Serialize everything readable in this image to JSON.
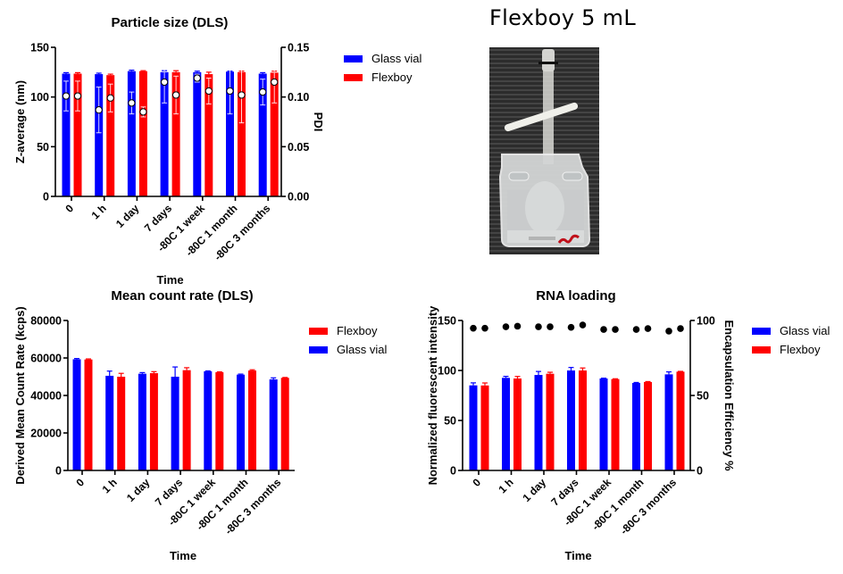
{
  "colors": {
    "glass_vial": "#0000ff",
    "flexboy": "#ff0000",
    "axis": "#000000",
    "pdi_marker_fill": "#ffffff",
    "ee_marker_fill": "#000000"
  },
  "photo": {
    "title": "Flexboy 5 mL",
    "description": "Photograph of a Flexboy 5 mL bag"
  },
  "legends": {
    "particle_size": [
      "Glass vial",
      "Flexboy"
    ],
    "count_rate": [
      "Flexboy",
      "Glass vial"
    ],
    "rna_loading": [
      "Glass vial",
      "Flexboy"
    ]
  },
  "chart_data": [
    {
      "id": "particle_size",
      "type": "bar",
      "title": "Particle size (DLS)",
      "xlabel": "Time",
      "ylabel": "Z-average (nm)",
      "y2label": "PDI",
      "categories": [
        "0",
        "1 h",
        "1 day",
        "7 days",
        "-80C 1 week",
        "-80C 1 month",
        "-80C 3 months"
      ],
      "ylim": [
        0,
        150
      ],
      "yticks": [
        "0",
        "50",
        "100",
        "150"
      ],
      "y2lim": [
        0,
        0.15
      ],
      "y2ticks": [
        "0.00",
        "0.05",
        "0.10",
        "0.15"
      ],
      "legend_position": "right",
      "grid": false,
      "series": [
        {
          "name": "Glass vial",
          "color_key": "glass_vial",
          "axis": "left",
          "values": [
            123.5,
            123,
            126,
            125,
            125,
            125.5,
            123.5
          ],
          "errors": [
            1,
            1,
            1,
            1.5,
            1,
            0.5,
            1
          ]
        },
        {
          "name": "Flexboy",
          "color_key": "flexboy",
          "axis": "left",
          "values": [
            123.5,
            122,
            126,
            125,
            123,
            125,
            124.5
          ],
          "errors": [
            1,
            1,
            0.5,
            1.5,
            2,
            1,
            1.5
          ]
        }
      ],
      "overlay_series": [
        {
          "name": "Glass vial PDI",
          "marker": "white-circle",
          "axis": "right",
          "values": [
            0.101,
            0.087,
            0.094,
            0.115,
            0.119,
            0.106,
            0.105
          ],
          "errors": [
            0.015,
            0.023,
            0.011,
            0.021,
            0.004,
            0.023,
            0.013
          ]
        },
        {
          "name": "Flexboy PDI",
          "marker": "white-circle",
          "axis": "right",
          "values": [
            0.101,
            0.099,
            0.085,
            0.102,
            0.106,
            0.102,
            0.115
          ],
          "errors": [
            0.015,
            0.014,
            0.005,
            0.019,
            0.013,
            0.028,
            0.021
          ]
        }
      ]
    },
    {
      "id": "count_rate",
      "type": "bar",
      "title": "Mean count rate (DLS)",
      "xlabel": "Time",
      "ylabel": "Derived Mean Count Rate (kcps)",
      "categories": [
        "0",
        "1 h",
        "1 day",
        "7 days",
        "-80C 1 week",
        "-80C 1 month",
        "-80C 3 months"
      ],
      "ylim": [
        0,
        80000
      ],
      "yticks": [
        "0",
        "20000",
        "40000",
        "60000",
        "80000"
      ],
      "legend_position": "right",
      "grid": false,
      "series": [
        {
          "name": "Glass vial",
          "color_key": "glass_vial",
          "values": [
            59300,
            50500,
            51600,
            50000,
            52900,
            51100,
            48600
          ],
          "errors": [
            400,
            2500,
            600,
            5200,
            200,
            300,
            800
          ]
        },
        {
          "name": "Flexboy",
          "color_key": "flexboy",
          "values": [
            59200,
            50000,
            51900,
            53500,
            52400,
            53300,
            49400
          ],
          "errors": [
            300,
            1800,
            800,
            1300,
            200,
            400,
            200
          ]
        }
      ]
    },
    {
      "id": "rna_loading",
      "type": "bar",
      "title": "RNA loading",
      "xlabel": "Time",
      "ylabel": "Normalized fluorescent intensity",
      "y2label": "Encapsulation Efficiency %",
      "categories": [
        "0",
        "1 h",
        "1 day",
        "7 days",
        "-80C 1 week",
        "-80C 1 month",
        "-80C 3 months"
      ],
      "ylim": [
        0,
        150
      ],
      "yticks": [
        "0",
        "50",
        "100",
        "150"
      ],
      "y2lim": [
        0,
        100
      ],
      "y2ticks": [
        "0",
        "50",
        "100"
      ],
      "legend_position": "right",
      "grid": false,
      "series": [
        {
          "name": "Glass vial",
          "color_key": "glass_vial",
          "axis": "left",
          "values": [
            85.1,
            92.6,
            95.5,
            100,
            92,
            87.5,
            96.1
          ],
          "errors": [
            2.5,
            1.5,
            3.5,
            3,
            0.3,
            0.5,
            2.5
          ]
        },
        {
          "name": "Flexboy",
          "color_key": "flexboy",
          "axis": "left",
          "values": [
            85,
            92,
            96.7,
            100,
            91.4,
            88.4,
            98.8
          ],
          "errors": [
            2.5,
            2,
            1.5,
            2.5,
            0.3,
            0.5,
            0.3
          ]
        }
      ],
      "overlay_series": [
        {
          "name": "Glass vial EE",
          "marker": "black-circle",
          "axis": "right",
          "values": [
            94.8,
            95.8,
            95.8,
            95.4,
            94,
            94,
            92.9
          ]
        },
        {
          "name": "Flexboy EE",
          "marker": "black-circle",
          "axis": "right",
          "values": [
            94.8,
            96.2,
            95.8,
            97,
            94,
            94.6,
            94.6
          ]
        }
      ]
    }
  ]
}
